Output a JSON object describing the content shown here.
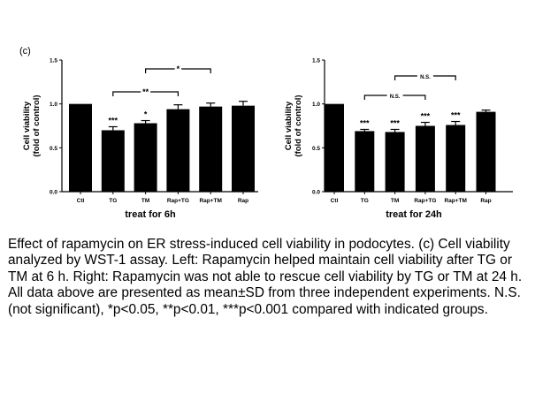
{
  "panel_label": "(c)",
  "caption": "Effect of rapamycin on ER stress-induced cell viability in podocytes. (c) Cell viability analyzed by WST-1 assay. Left: Rapamycin helped maintain cell viability after TG or TM at 6 h. Right: Rapamycin was not able to rescue cell viability by TG or TM at 24 h. All data above are presented as mean±SD from three independent experiments. N.S. (not significant), *p<0.05, **p<0.01, ***p<0.001 compared with indicated groups.",
  "chart_data": [
    {
      "type": "bar",
      "ylabel": "Cell viability\n(fold of control)",
      "xlabel": "treat for 6h",
      "ylim": [
        0,
        1.5
      ],
      "yticks": [
        "0.0",
        "0.5",
        "1.0",
        "1.5"
      ],
      "categories": [
        "Ctl",
        "TG",
        "TM",
        "Rap+TG",
        "Rap+TM",
        "Rap"
      ],
      "values": [
        1.0,
        0.7,
        0.78,
        0.94,
        0.97,
        0.98
      ],
      "errors": [
        0.0,
        0.04,
        0.03,
        0.05,
        0.04,
        0.05
      ],
      "bar_labels": [
        "",
        "***",
        "*",
        "",
        "",
        ""
      ],
      "brackets": [
        {
          "from": "TG",
          "to": "Rap+TG",
          "label": "**"
        },
        {
          "from": "TM",
          "to": "Rap+TM",
          "label": "*"
        }
      ],
      "bar_color": "#000000"
    },
    {
      "type": "bar",
      "ylabel": "Cell viability\n(fold of control)",
      "xlabel": "treat for 24h",
      "ylim": [
        0,
        1.5
      ],
      "yticks": [
        "0.0",
        "0.5",
        "1.0",
        "1.5"
      ],
      "categories": [
        "Ctl",
        "TG",
        "TM",
        "Rap+TG",
        "Rap+TM",
        "Rap"
      ],
      "values": [
        1.0,
        0.69,
        0.68,
        0.75,
        0.76,
        0.91
      ],
      "errors": [
        0.0,
        0.02,
        0.03,
        0.04,
        0.04,
        0.02
      ],
      "bar_labels": [
        "",
        "***",
        "***",
        "***",
        "***",
        ""
      ],
      "brackets": [
        {
          "from": "TG",
          "to": "Rap+TG",
          "label": "N.S."
        },
        {
          "from": "TM",
          "to": "Rap+TM",
          "label": "N.S."
        }
      ],
      "bar_color": "#000000"
    }
  ]
}
